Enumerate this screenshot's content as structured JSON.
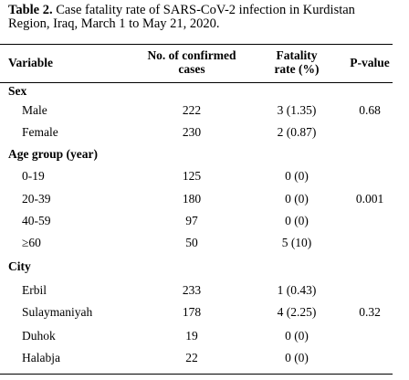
{
  "caption": {
    "label": "Table 2.",
    "line1_rest": " Case fatality rate of SARS-CoV-2 infection in Kurdistan",
    "line2": "Region, Iraq, March 1 to May 21, 2020."
  },
  "headers": {
    "variable": "Variable",
    "confirmed_line1": "No. of confirmed",
    "confirmed_line2": "cases",
    "fatality_line1": "Fatality",
    "fatality_line2": "rate (%)",
    "pvalue": "P-value"
  },
  "sections": [
    {
      "title": "Sex",
      "rows": [
        {
          "label": "Male",
          "cases": "222",
          "fatality": "3 (1.35)",
          "p": "0.68"
        },
        {
          "label": "Female",
          "cases": "230",
          "fatality": "2 (0.87)",
          "p": ""
        }
      ]
    },
    {
      "title": "Age group (year)",
      "rows": [
        {
          "label": "0-19",
          "cases": "125",
          "fatality": "0 (0)",
          "p": ""
        },
        {
          "label": "20-39",
          "cases": "180",
          "fatality": "0 (0)",
          "p": "0.001"
        },
        {
          "label": "40-59",
          "cases": "97",
          "fatality": "0 (0)",
          "p": ""
        },
        {
          "label": "≥60",
          "cases": "50",
          "fatality": "5 (10)",
          "p": ""
        }
      ]
    },
    {
      "title": "City",
      "rows": [
        {
          "label": "Erbil",
          "cases": "233",
          "fatality": "1 (0.43)",
          "p": ""
        },
        {
          "label": "Sulaymaniyah",
          "cases": "178",
          "fatality": "4 (2.25)",
          "p": "0.32"
        },
        {
          "label": "Duhok",
          "cases": "19",
          "fatality": "0 (0)",
          "p": ""
        },
        {
          "label": "Halabja",
          "cases": "22",
          "fatality": "0 (0)",
          "p": ""
        }
      ]
    }
  ]
}
